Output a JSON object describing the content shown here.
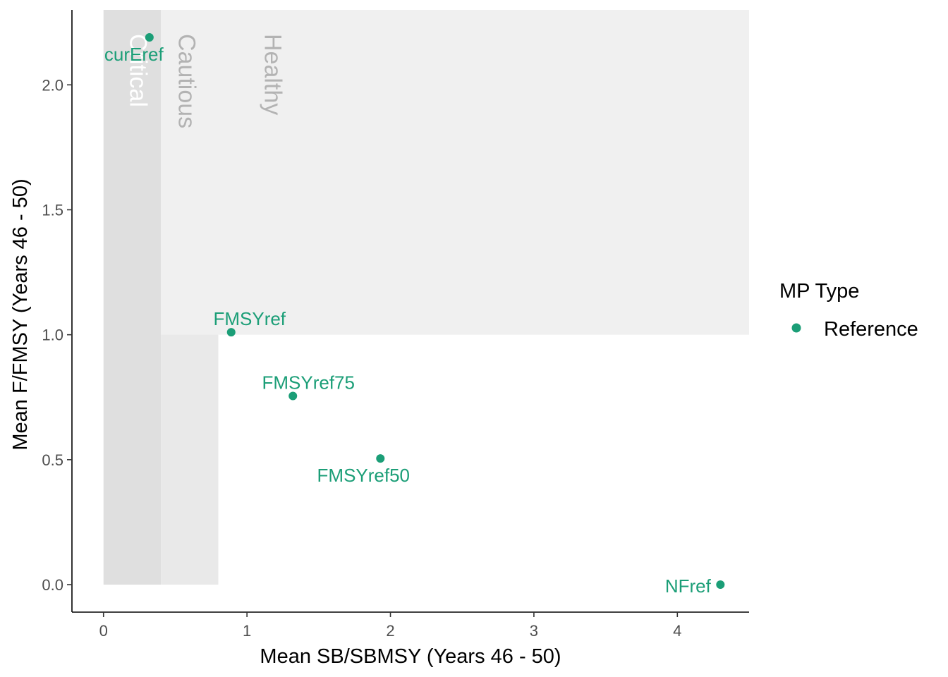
{
  "chart_data": {
    "type": "scatter",
    "xlabel": "Mean SB/SBMSY (Years 46 - 50)",
    "ylabel": "Mean F/FMSY (Years 46 - 50)",
    "xlim": [
      -0.22,
      4.5
    ],
    "ylim": [
      -0.11,
      2.3
    ],
    "xticks": [
      0,
      1,
      2,
      3,
      4
    ],
    "xtick_labels": [
      "0",
      "1",
      "2",
      "3",
      "4"
    ],
    "yticks": [
      0.0,
      0.5,
      1.0,
      1.5,
      2.0
    ],
    "ytick_labels": [
      "0.0",
      "0.5",
      "1.0",
      "1.5",
      "2.0"
    ],
    "grid": false,
    "legend_position": "right",
    "legend": {
      "title": "MP Type",
      "entries": [
        {
          "label": "Reference",
          "color": "#1b9e77"
        }
      ]
    },
    "zones": [
      {
        "label": "Critical",
        "x0": 0,
        "x1": 0.4,
        "y0": 0,
        "y1": 2.3,
        "fill": "#dfdfdf",
        "text_color": "#ffffff"
      },
      {
        "label": "Cautious",
        "x0": 0.4,
        "x1": 0.8,
        "y0": 0,
        "y1": 2.3,
        "fill": "#e9e9e9",
        "text_color": "#b3b3b3"
      },
      {
        "label": "Healthy",
        "x0": 0.8,
        "x1": 4.5,
        "y0": 1.0,
        "y1": 2.3,
        "fill": "#f0f0f0",
        "text_color": "#b3b3b3"
      },
      {
        "label": "",
        "x0": 0.4,
        "x1": 0.8,
        "y0": 1.0,
        "y1": 2.3,
        "fill": "#f0f0f0",
        "text_color": "#b3b3b3"
      }
    ],
    "series": [
      {
        "name": "Reference",
        "color": "#1b9e77",
        "points": [
          {
            "label": "curEref",
            "x": 0.32,
            "y": 2.19
          },
          {
            "label": "FMSYref",
            "x": 0.89,
            "y": 1.01
          },
          {
            "label": "FMSYref75",
            "x": 1.32,
            "y": 0.755
          },
          {
            "label": "FMSYref50",
            "x": 1.93,
            "y": 0.505
          },
          {
            "label": "NFref",
            "x": 4.3,
            "y": 0.0
          }
        ]
      }
    ]
  }
}
